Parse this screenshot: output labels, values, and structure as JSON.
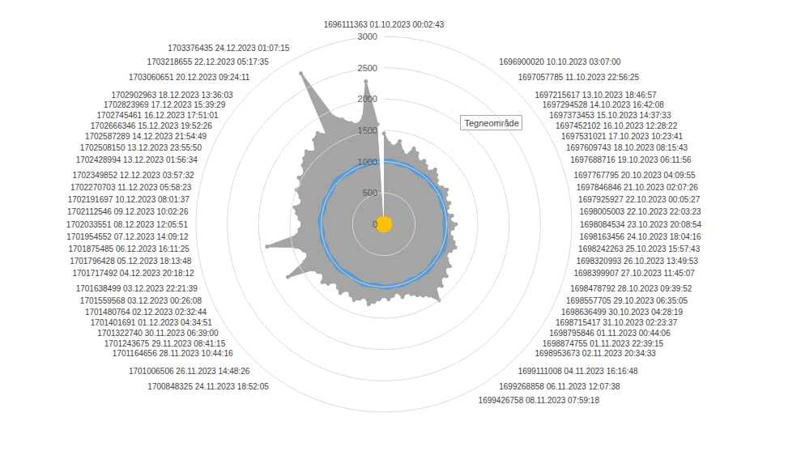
{
  "chart_data": {
    "type": "radar",
    "annotation": "Tegneområde",
    "categories": [
      "1696111363 01.10.2023 00:02:43",
      null,
      null,
      null,
      null,
      null,
      null,
      null,
      null,
      null,
      "1696900020 10.10.2023 03:07:00",
      null,
      "1697057785 11.10.2023 22:56:25",
      null,
      "1697215617 13.10.2023 18:46:57",
      "1697294528 14.10.2023 16:42:08",
      "1697373453 15.10.2023 14:37:33",
      "1697452102 16.10.2023 12:28:22",
      "1697531021 17.10.2023 10:23:41",
      "1697609743 18.10.2023 08:15:43",
      "1697688716 19.10.2023 06:11:56",
      "1697767795 20.10.2023 04:09:55",
      "1697846846 21.10.2023 02:07:26",
      "1697925927 22.10.2023 00:05:27",
      "1698005003 22.10.2023 22:03:23",
      "1698084534 23.10.2023 20:08:54",
      "1698163456 24.10.2023 18:04:16",
      "1698242263 25.10.2023 15:57:43",
      "1698320993 26.10.2023 13:49:53",
      "1698399907 27.10.2023 11:45:07",
      "1698478792 28.10.2023 09:39:52",
      "1698557705 29.10.2023 06:35:05",
      "1698636499 30.10.2023 04:28:19",
      "1698715417 31.10.2023 02:23:37",
      "1698795846 01.11.2023 00:44:06",
      "1698874755 01.11.2023 22:39:15",
      "1698953673 02.11.2023 20:34:33",
      null,
      "1699111008 04.11.2023 16:16:48",
      null,
      "1699268858 06.11.2023 12:07:38",
      null,
      "1699426758 08.11.2023 07:59:18",
      null,
      null,
      null,
      null,
      null,
      null,
      null,
      null,
      null,
      null,
      null,
      null,
      null,
      null,
      null,
      null,
      null,
      "1700848325 24.11.2023 18:52:05",
      null,
      "1701006506 26.11.2023 14:48:26",
      null,
      "1701164656 28.11.2023 10:44:16",
      "1701243675 29.11.2023 08:41:15",
      "1701322740 30.11.2023 06:39:00",
      "1701401691 01.12.2023 04:34:51",
      "1701480764 02.12.2023 02:32:44",
      "1701559568 03.12.2023 00:26:08",
      "1701638499 03.12.2023 22:21:39",
      "1701717492 04.12.2023 20:18:12",
      "1701796428 05.12.2023 18:13:48",
      "1701875485 06.12.2023 16:11:25",
      "1701954552 07.12.2023 14:09:12",
      "1702033551 08.12.2023 12:05:51",
      "1702112546 09.12.2023 10:02:26",
      "1702191697 10.12.2023 08:01:37",
      "1702270703 11.12.2023 05:58:23",
      "1702349852 12.12.2023 03:57:32",
      "1702428994 13.12.2023 01:56:34",
      "1702508150 13.12.2023 23:55:50",
      "1702587289 14.12.2023 21:54:49",
      "1702666346 15.12.2023 19:52:26",
      "1702745461 16.12.2023 17:51:01",
      "1702823969 17.12.2023 15:39:29",
      "1702902963 18.12.2023 13:36:03",
      null,
      "1703060651 20.12.2023 09:24:11",
      null,
      "1703218655 22.12.2023 05:17:35",
      null,
      "1703376435 24.12.2023 01:07:15",
      null,
      null,
      null,
      null,
      null,
      null,
      null
    ],
    "series": [
      {
        "type": "area",
        "color": "#a5a5a5",
        "marker": "circle",
        "line_style": "solid",
        "values": [
          1450,
          1300,
          1250,
          1350,
          1200,
          1150,
          1300,
          1250,
          1150,
          1200,
          1150,
          1100,
          1200,
          1150,
          1100,
          1050,
          1100,
          1150,
          1100,
          1050,
          1100,
          1050,
          1000,
          1100,
          1050,
          1150,
          1100,
          1050,
          1100,
          1150,
          1200,
          1150,
          1100,
          1150,
          1250,
          1200,
          1300,
          1250,
          1350,
          1300,
          1500,
          1350,
          1300,
          1250,
          1200,
          1150,
          1200,
          1100,
          1150,
          1200,
          1150,
          1200,
          1250,
          1300,
          1200,
          1250,
          1300,
          1250,
          1200,
          1300,
          1250,
          1200,
          1300,
          1350,
          1250,
          1300,
          1350,
          1750,
          1400,
          1300,
          1350,
          1450,
          1900,
          1400,
          1350,
          1300,
          1350,
          1400,
          1450,
          1350,
          1400,
          1500,
          1450,
          1550,
          1500,
          1600,
          1650,
          1700,
          1600,
          1750,
          1800,
          1700,
          2750,
          1900,
          1800,
          1700,
          1650,
          1750,
          2300,
          1600
        ]
      },
      {
        "type": "line",
        "color": "#5b9bd5",
        "marker": "none",
        "line_style": "solid",
        "values": [
          1000,
          1010,
          1020,
          1000,
          990,
          1000,
          1010,
          1000,
          990,
          980,
          990,
          1000,
          1010,
          1000,
          990,
          1000,
          1010,
          1020,
          1000,
          990,
          980,
          990,
          1000,
          990,
          980,
          970,
          980,
          990,
          1000,
          1010,
          1020,
          1030,
          1020,
          1010,
          1000,
          990,
          1000,
          1010,
          1020,
          1010,
          1000,
          1010,
          1000,
          990,
          1000,
          1010,
          1000,
          990,
          1000,
          1010,
          1000,
          990,
          980,
          990,
          1000,
          1010,
          1000,
          990,
          980,
          970,
          980,
          990,
          1000,
          1010,
          1000,
          990,
          1000,
          1010,
          1000,
          990,
          1000,
          1010,
          1000,
          990,
          1000,
          1010,
          1020,
          1010,
          1000,
          990,
          1000,
          1010,
          1000,
          990,
          1000,
          1010,
          1020,
          1030,
          1020,
          1010,
          1000,
          990,
          1000,
          1010,
          1000,
          990,
          1000,
          1010,
          1000,
          990
        ]
      },
      {
        "type": "scatter",
        "color": "#ffc000",
        "marker": "circle",
        "line_style": "none",
        "values": [
          0,
          0,
          0,
          0,
          0,
          0,
          0,
          0,
          0,
          0,
          0,
          0,
          0,
          0,
          0,
          0,
          0,
          0,
          0,
          0,
          0,
          0,
          0,
          0,
          0,
          0,
          0,
          0,
          0,
          0,
          0,
          0,
          0,
          0,
          0,
          0,
          0,
          0,
          0,
          0,
          0,
          0,
          0,
          0,
          0,
          0,
          0,
          0,
          0,
          0,
          0,
          0,
          0,
          0,
          0,
          0,
          0,
          0,
          0,
          0,
          0,
          0,
          0,
          0,
          0,
          0,
          0,
          0,
          0,
          0,
          0,
          0,
          0,
          0,
          0,
          0,
          0,
          0,
          0,
          0,
          0,
          0,
          0,
          0,
          0,
          0,
          0,
          0,
          0,
          0,
          0,
          0,
          0,
          0,
          0,
          0,
          0,
          0,
          0,
          0
        ]
      }
    ],
    "ylim": [
      0,
      3000
    ],
    "yticks": [
      0,
      500,
      1000,
      1500,
      2000,
      2500,
      3000
    ],
    "grid": true
  }
}
